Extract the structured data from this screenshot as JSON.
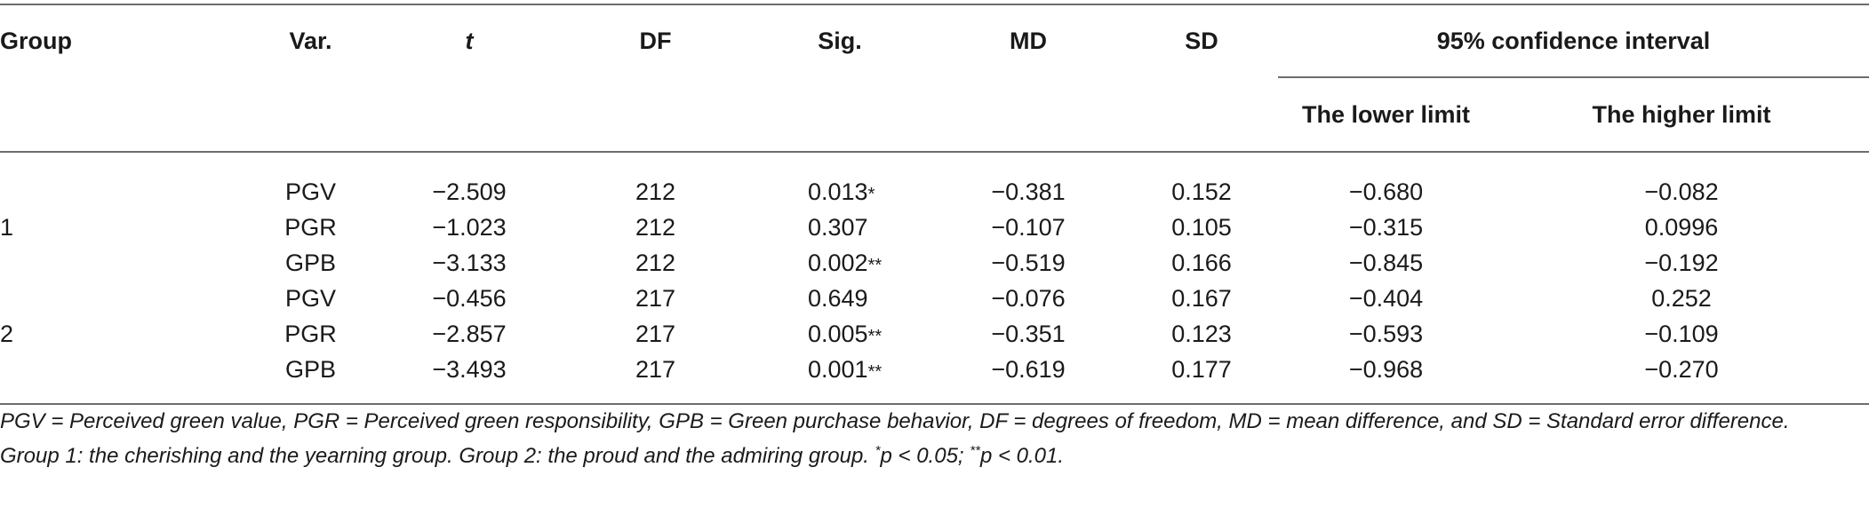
{
  "table": {
    "headers": {
      "group": "Group",
      "var": "Var.",
      "t": "t",
      "df": "DF",
      "sig": "Sig.",
      "md": "MD",
      "sd": "SD",
      "ci": "95% confidence interval",
      "lower": "The lower limit",
      "higher": "The higher limit"
    },
    "groups": [
      {
        "label": "1"
      },
      {
        "label": "2"
      }
    ],
    "rows": [
      {
        "var": "PGV",
        "t": "−2.509",
        "df": "212",
        "sig": "0.013",
        "stars": "*",
        "md": "−0.381",
        "sd": "0.152",
        "lower": "−0.680",
        "higher": "−0.082"
      },
      {
        "var": "PGR",
        "t": "−1.023",
        "df": "212",
        "sig": "0.307",
        "stars": "",
        "md": "−0.107",
        "sd": "0.105",
        "lower": "−0.315",
        "higher": "0.0996"
      },
      {
        "var": "GPB",
        "t": "−3.133",
        "df": "212",
        "sig": "0.002",
        "stars": "**",
        "md": "−0.519",
        "sd": "0.166",
        "lower": "−0.845",
        "higher": "−0.192"
      },
      {
        "var": "PGV",
        "t": "−0.456",
        "df": "217",
        "sig": "0.649",
        "stars": "",
        "md": "−0.076",
        "sd": "0.167",
        "lower": "−0.404",
        "higher": "0.252"
      },
      {
        "var": "PGR",
        "t": "−2.857",
        "df": "217",
        "sig": "0.005",
        "stars": "**",
        "md": "−0.351",
        "sd": "0.123",
        "lower": "−0.593",
        "higher": "−0.109"
      },
      {
        "var": "GPB",
        "t": "−3.493",
        "df": "217",
        "sig": "0.001",
        "stars": "**",
        "md": "−0.619",
        "sd": "0.177",
        "lower": "−0.968",
        "higher": "−0.270"
      }
    ]
  },
  "notes": {
    "line1": "PGV = Perceived green value, PGR = Perceived green responsibility, GPB = Green purchase behavior, DF = degrees of freedom, MD = mean difference, and SD = Standard error difference.",
    "line2_prefix": "Group 1: the cherishing and the yearning group. Group 2: the proud and the admiring group. ",
    "sig1_mark": "*",
    "sig1_text": "p < 0.05; ",
    "sig2_mark": "**",
    "sig2_text": "p < 0.01."
  }
}
